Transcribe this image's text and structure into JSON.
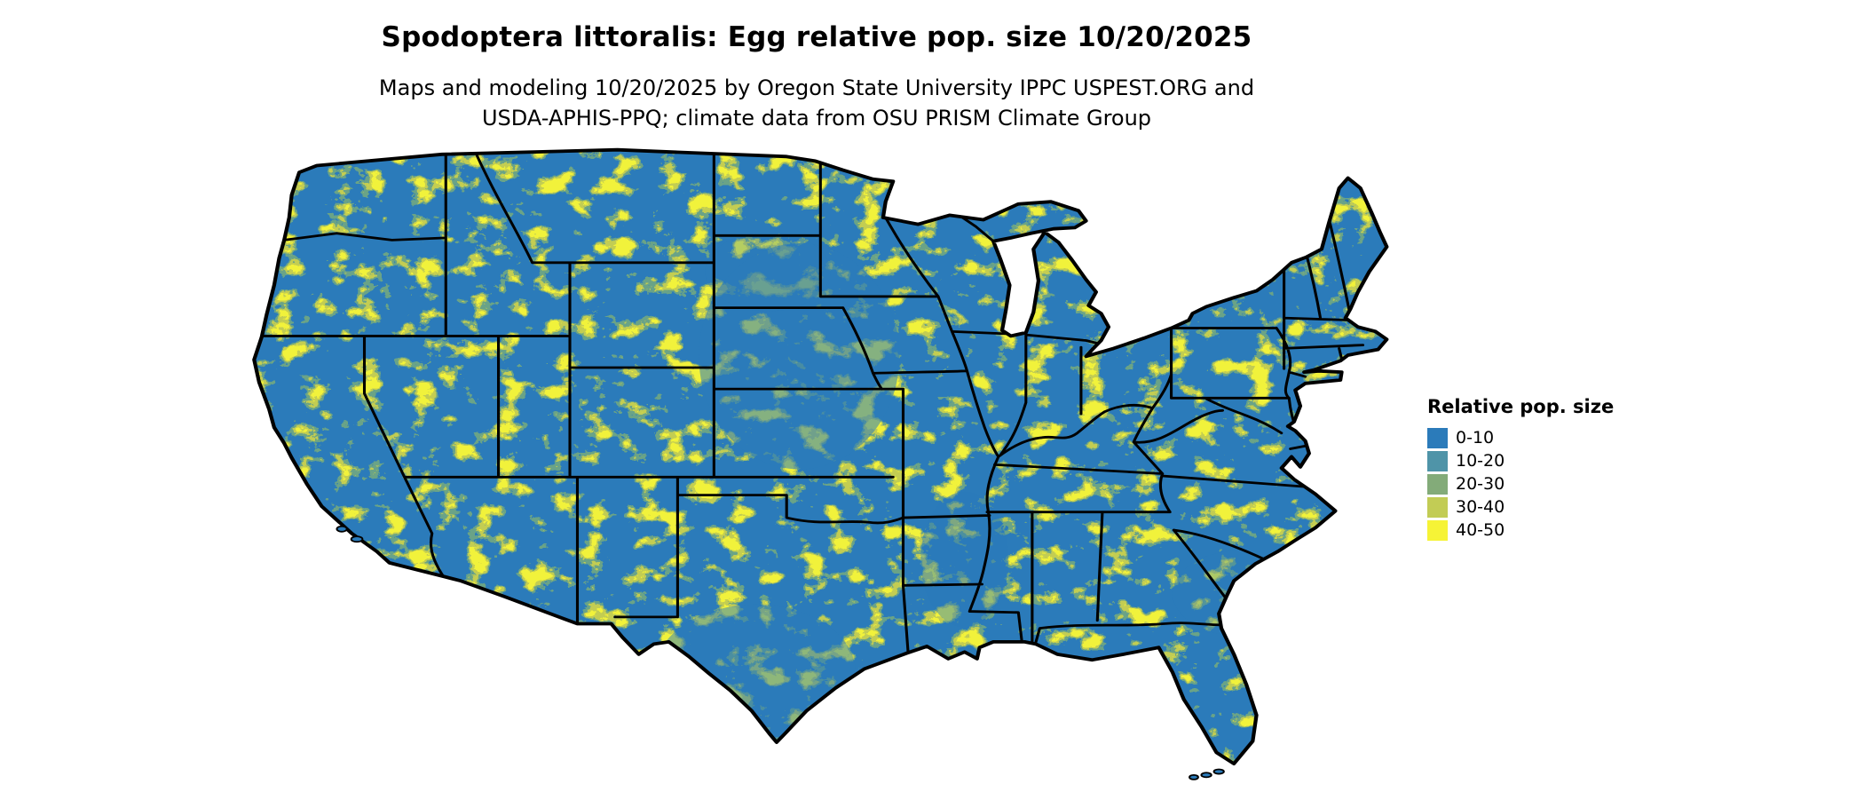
{
  "title": "Spodoptera littoralis: Egg relative pop. size 10/20/2025",
  "subtitle_line1": "Maps and modeling 10/20/2025 by Oregon State University IPPC USPEST.ORG and",
  "subtitle_line2": "USDA-APHIS-PPQ; climate data from OSU PRISM Climate Group",
  "map": {
    "name": "contiguous-united-states-relative-population-map",
    "species": "Spodoptera littoralis",
    "stage": "Egg",
    "date": "10/20/2025",
    "base_color": "#2b7bba",
    "border_color": "#000000",
    "texture_colors": [
      "#6aa387",
      "#c3cd52",
      "#f1f23b"
    ]
  },
  "legend": {
    "title": "Relative pop. size",
    "items": [
      {
        "label": "0-10",
        "color": "#2b7bba"
      },
      {
        "label": "10-20",
        "color": "#4f94a8"
      },
      {
        "label": "20-30",
        "color": "#83ab79"
      },
      {
        "label": "30-40",
        "color": "#c2cc55"
      },
      {
        "label": "40-50",
        "color": "#f6f336"
      }
    ]
  }
}
